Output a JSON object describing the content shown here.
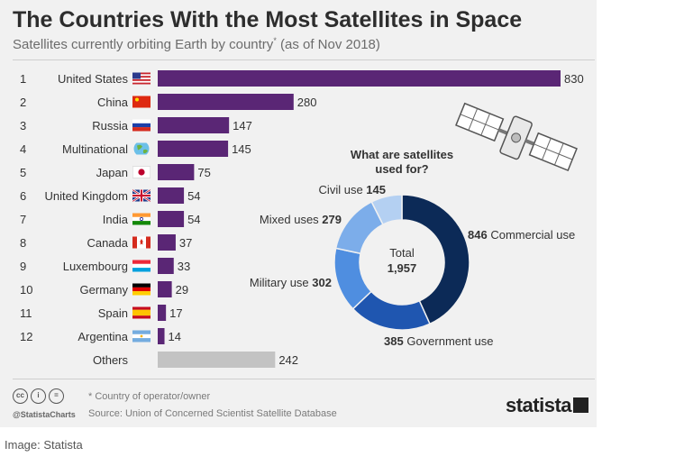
{
  "title": "The Countries With the Most Satellites in Space",
  "subtitle": "Satellites currently orbiting Earth by country",
  "subtitle_mark": "*",
  "subtitle_date": "(as of Nov 2018)",
  "chart_data": [
    {
      "type": "bar",
      "orientation": "horizontal",
      "categories": [
        "United States",
        "China",
        "Russia",
        "Multinational",
        "Japan",
        "United Kingdom",
        "India",
        "Canada",
        "Luxembourg",
        "Germany",
        "Spain",
        "Argentina",
        "Others"
      ],
      "ranks": [
        "1",
        "2",
        "3",
        "4",
        "5",
        "6",
        "7",
        "8",
        "9",
        "10",
        "11",
        "12",
        ""
      ],
      "flags": [
        "flag-us-icon",
        "flag-china-icon",
        "flag-russia-icon",
        "globe-icon",
        "flag-japan-icon",
        "flag-uk-icon",
        "flag-india-icon",
        "flag-canada-icon",
        "flag-luxembourg-icon",
        "flag-germany-icon",
        "flag-spain-icon",
        "flag-argentina-icon",
        ""
      ],
      "values": [
        830,
        280,
        147,
        145,
        75,
        54,
        54,
        37,
        33,
        29,
        17,
        14,
        242
      ],
      "colors": {
        "country": "#5a2675",
        "others": "#c3c3c3"
      }
    },
    {
      "type": "pie",
      "donut": true,
      "title": "What are satellites used for?",
      "center_label": "Total",
      "center_value": "1,957",
      "slices": [
        {
          "label": "Commercial use",
          "value": 846,
          "display": "846",
          "color": "#0c2a57"
        },
        {
          "label": "Government use",
          "value": 385,
          "display": "385",
          "color": "#1f56b0"
        },
        {
          "label": "Military use",
          "value": 302,
          "display": "302",
          "color": "#4f8ee0"
        },
        {
          "label": "Mixed uses",
          "value": 279,
          "display": "279",
          "color": "#7cadea"
        },
        {
          "label": "Civil use",
          "value": 145,
          "display": "145",
          "color": "#b4d0f2"
        }
      ]
    }
  ],
  "footer": {
    "note": "* Country of operator/owner",
    "source": "Source: Union of Concerned Scientist Satellite Database",
    "handle": "@StatistaCharts",
    "brand": "statista",
    "cc_icons": [
      "cc",
      "i",
      "="
    ]
  },
  "caption": "Image: Statista"
}
